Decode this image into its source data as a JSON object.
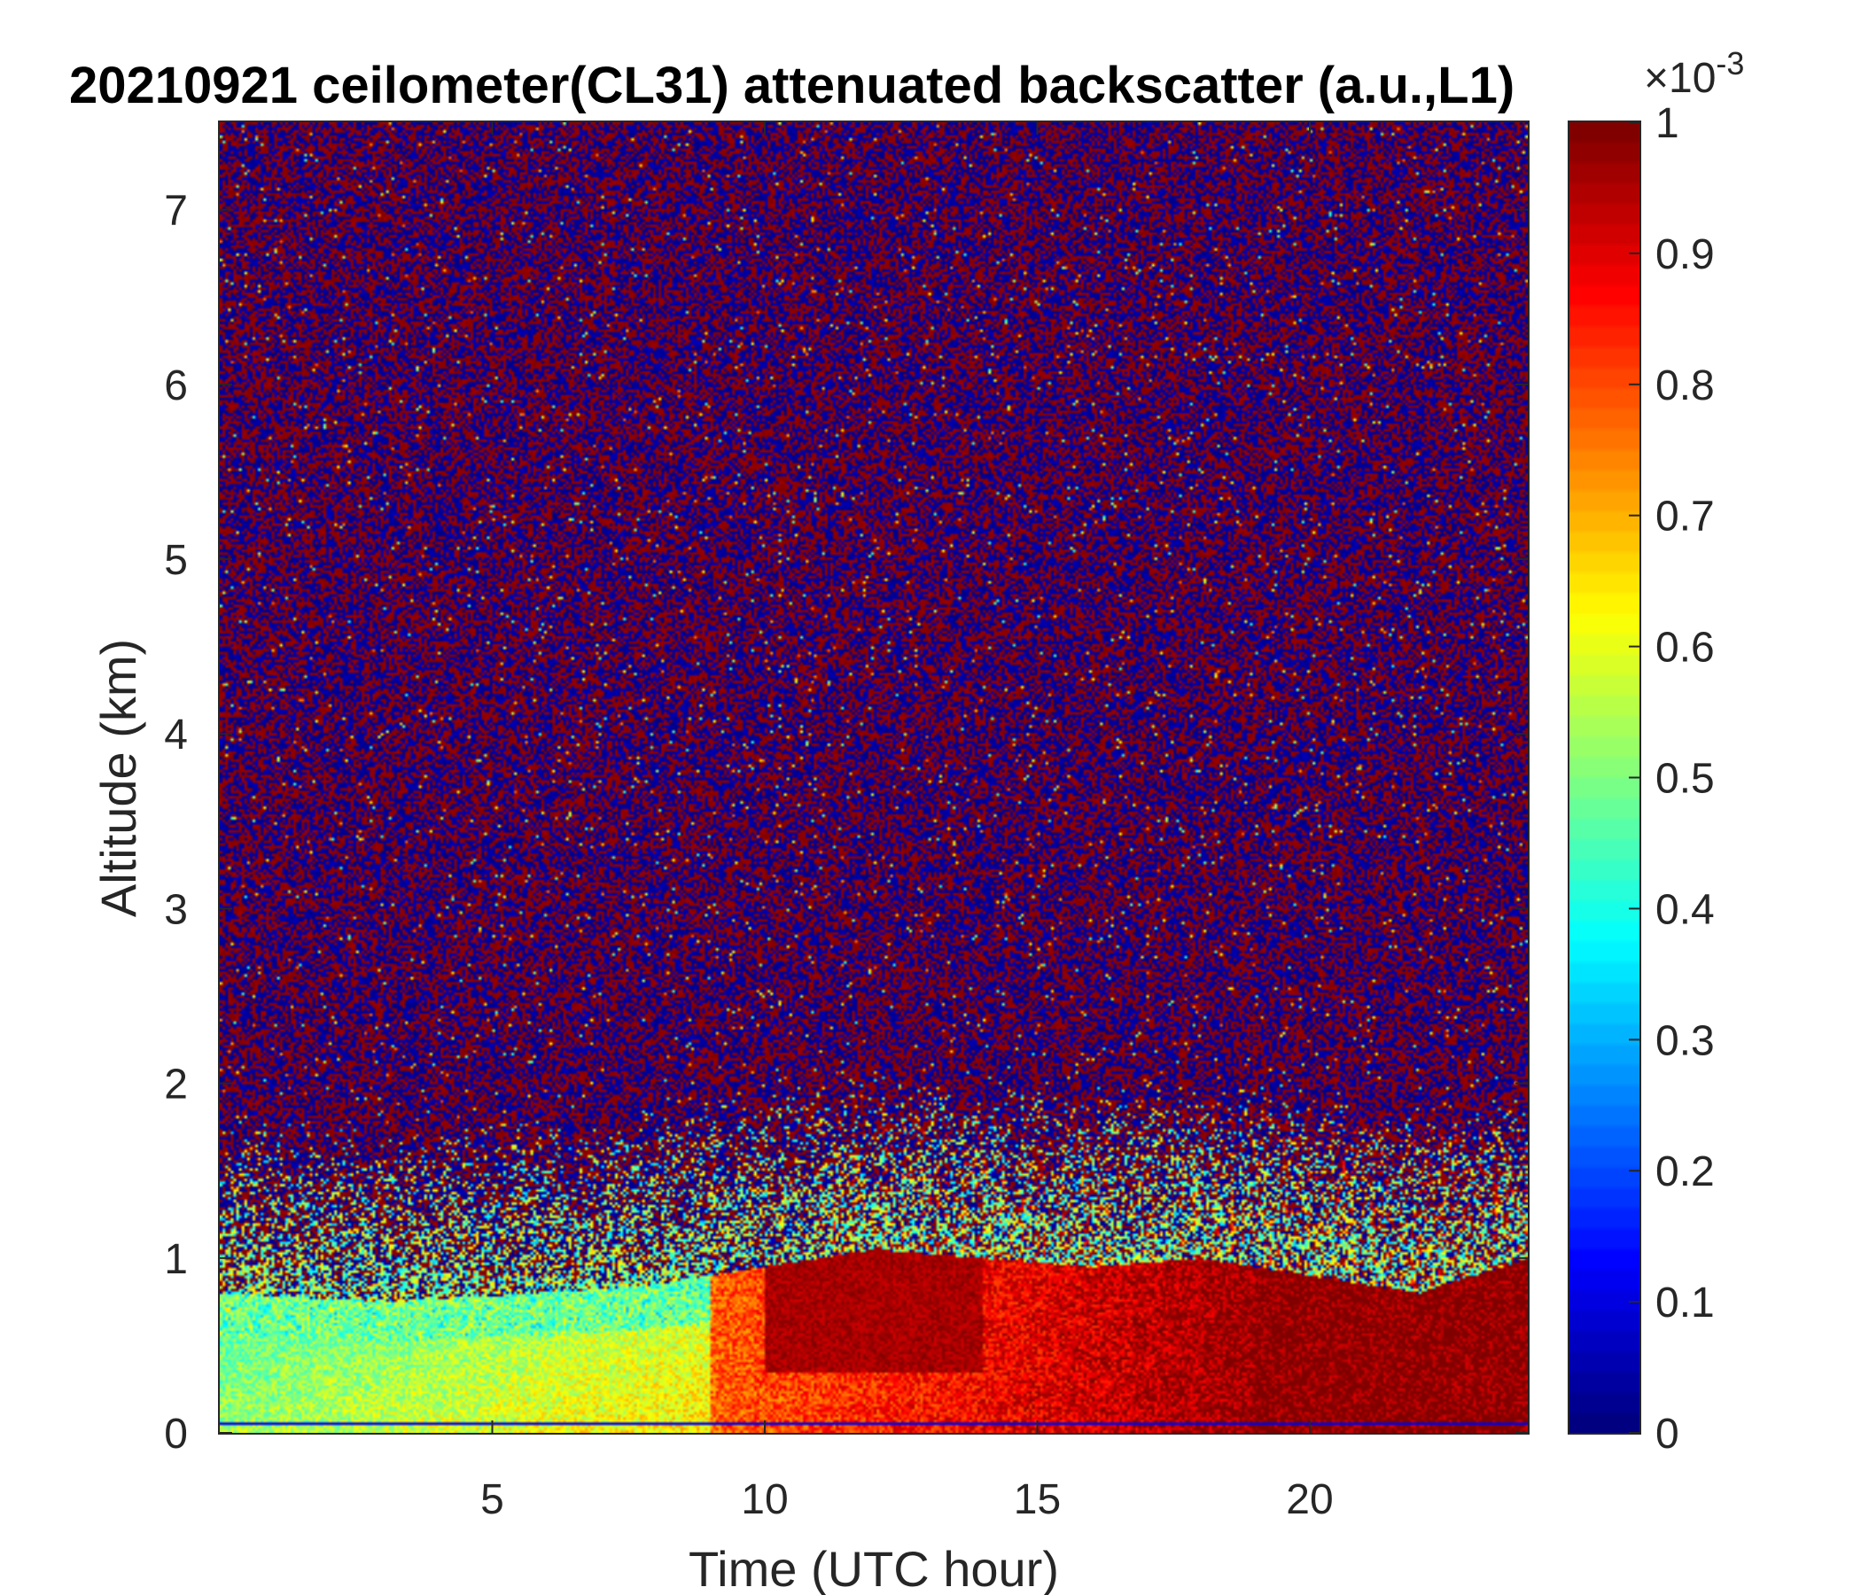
{
  "chart_data": {
    "type": "heatmap",
    "title": "20210921 ceilometer(CL31) attenuated backscatter (a.u.,L1)",
    "xlabel": "Time (UTC hour)",
    "ylabel": "Altitude (km)",
    "xlim": [
      0,
      24
    ],
    "ylim": [
      0,
      7.5
    ],
    "x_ticks": [
      5,
      10,
      15,
      20
    ],
    "y_ticks": [
      0,
      1,
      2,
      3,
      4,
      5,
      6,
      7
    ],
    "colorbar": {
      "colormap": "jet",
      "range": [
        0,
        1
      ],
      "ticks": [
        0,
        0.1,
        0.2,
        0.3,
        0.4,
        0.5,
        0.6,
        0.7,
        0.8,
        0.9,
        1
      ],
      "tick_labels": [
        "0",
        "0.1",
        "0.2",
        "0.3",
        "0.4",
        "0.5",
        "0.6",
        "0.7",
        "0.8",
        "0.9",
        "1"
      ],
      "exponent_base": "×10",
      "exponent": "-3"
    },
    "field_description_values": {
      "boundary_layer_top_km": [
        [
          0,
          0.8
        ],
        [
          3,
          0.75
        ],
        [
          6,
          0.8
        ],
        [
          8,
          0.85
        ],
        [
          10,
          0.95
        ],
        [
          12,
          1.05
        ],
        [
          14,
          1.0
        ],
        [
          16,
          0.95
        ],
        [
          18,
          1.0
        ],
        [
          20,
          0.9
        ],
        [
          22,
          0.8
        ],
        [
          24,
          1.0
        ]
      ],
      "noise_level_upper": "random high/low values above ~1.5 km"
    }
  }
}
